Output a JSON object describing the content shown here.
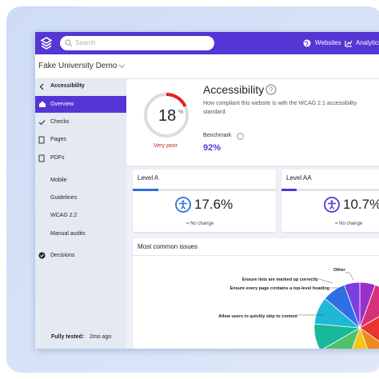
{
  "nav": {
    "search_placeholder": "Search",
    "websites": "Websites",
    "analytics": "Analytics"
  },
  "site": "Fake University Demo",
  "sidebar": {
    "back": "Accessibility",
    "items": [
      "Overview",
      "Checks",
      "Pages",
      "PDFs",
      "Mobile",
      "Guidelines",
      "WCAG 2.2",
      "Manual audits",
      "Decisions"
    ],
    "fully_tested_label": "Fully tested:",
    "fully_tested_value": "2mo ago"
  },
  "score_card": {
    "score": 18,
    "unit": "%",
    "rating": "Very poor",
    "title": "Accessibility",
    "description": "How compliant this website is with the WCAG 2.1 accessibility standard.",
    "benchmark_label": "Benchmark",
    "benchmark_value": "92%"
  },
  "levels": [
    {
      "title": "Level A",
      "score": "17.6%",
      "change": "No change"
    },
    {
      "title": "Level AA",
      "score": "10.7%",
      "change": "No change"
    }
  ],
  "issues": {
    "title": "Most common issues",
    "labels": [
      "Other",
      "Ensure lists are marked up correctly",
      "Ensure every page contains a top-level heading",
      "Allow users to quickly skip to content"
    ]
  }
}
